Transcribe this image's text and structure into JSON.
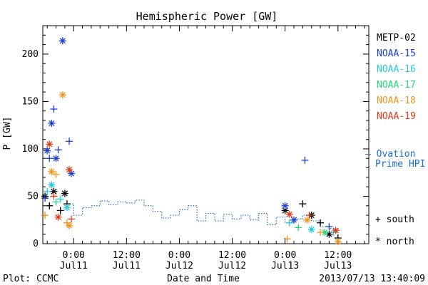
{
  "chart_data": {
    "type": "scatter",
    "title": "Hemispheric Power [GW]",
    "ylabel": "P [GW]",
    "xlabel": "Date and Time",
    "ylim": [
      0,
      230
    ],
    "xlim": [
      "2013-07-10 17:00",
      "2013-07-13 19:00"
    ],
    "yticks": [
      0,
      50,
      100,
      150,
      200
    ],
    "xticks": [
      {
        "time": "2013-07-11 00:00",
        "line1": "0:00",
        "line2": "Jul11"
      },
      {
        "time": "2013-07-11 12:00",
        "line1": "12:00",
        "line2": "Jul11"
      },
      {
        "time": "2013-07-12 00:00",
        "line1": "0:00",
        "line2": "Jul12"
      },
      {
        "time": "2013-07-12 12:00",
        "line1": "12:00",
        "line2": "Jul12"
      },
      {
        "time": "2013-07-13 00:00",
        "line1": "0:00",
        "line2": "Jul13"
      },
      {
        "time": "2013-07-13 12:00",
        "line1": "12:00",
        "line2": "Jul13"
      }
    ],
    "legend": {
      "placement": "right",
      "series": [
        {
          "name": "METP-02",
          "color": "#000000"
        },
        {
          "name": "NOAA-15",
          "color": "#1a3fd6"
        },
        {
          "name": "NOAA-16",
          "color": "#22c8e8"
        },
        {
          "name": "NOAA-17",
          "color": "#22d87a"
        },
        {
          "name": "NOAA-18",
          "color": "#f0941c"
        },
        {
          "name": "NOAA-19",
          "color": "#e03a1a"
        }
      ],
      "ovation_label_1": "— Ovation",
      "ovation_label_2": "Prime HPI",
      "ovation_color": "#1a6fd6",
      "marker_south_label": "+ south",
      "marker_north_label": "* north"
    },
    "series": [
      {
        "name": "METP-02",
        "points": [
          {
            "t": "2013-07-10 17:30",
            "v": 50,
            "m": "*"
          },
          {
            "t": "2013-07-10 18:30",
            "v": 40,
            "m": "+"
          },
          {
            "t": "2013-07-10 19:30",
            "v": 55,
            "m": "*"
          },
          {
            "t": "2013-07-10 21:00",
            "v": 35,
            "m": "+"
          },
          {
            "t": "2013-07-10 22:00",
            "v": 53,
            "m": "*"
          },
          {
            "t": "2013-07-10 22:30",
            "v": 42,
            "m": "+"
          },
          {
            "t": "2013-07-13 00:00",
            "v": 35,
            "m": "*"
          },
          {
            "t": "2013-07-13 04:00",
            "v": 42,
            "m": "+"
          },
          {
            "t": "2013-07-13 06:00",
            "v": 30,
            "m": "*"
          },
          {
            "t": "2013-07-13 08:00",
            "v": 22,
            "m": "+"
          },
          {
            "t": "2013-07-13 10:00",
            "v": 10,
            "m": "*"
          },
          {
            "t": "2013-07-13 12:00",
            "v": 6,
            "m": "+"
          }
        ]
      },
      {
        "name": "NOAA-15",
        "points": [
          {
            "t": "2013-07-10 18:00",
            "v": 98,
            "m": "*"
          },
          {
            "t": "2013-07-10 18:30",
            "v": 90,
            "m": "+"
          },
          {
            "t": "2013-07-10 19:00",
            "v": 127,
            "m": "*"
          },
          {
            "t": "2013-07-10 19:30",
            "v": 142,
            "m": "+"
          },
          {
            "t": "2013-07-10 20:00",
            "v": 90,
            "m": "*"
          },
          {
            "t": "2013-07-10 20:30",
            "v": 99,
            "m": "+"
          },
          {
            "t": "2013-07-10 21:30",
            "v": 214,
            "m": "*"
          },
          {
            "t": "2013-07-10 23:00",
            "v": 108,
            "m": "+"
          },
          {
            "t": "2013-07-10 23:30",
            "v": 74,
            "m": "*"
          },
          {
            "t": "2013-07-10 17:30",
            "v": 48,
            "m": "+"
          },
          {
            "t": "2013-07-13 00:00",
            "v": 40,
            "m": "*"
          },
          {
            "t": "2013-07-13 04:30",
            "v": 88,
            "m": "+"
          },
          {
            "t": "2013-07-13 02:00",
            "v": 25,
            "m": "*"
          },
          {
            "t": "2013-07-13 10:00",
            "v": 18,
            "m": "+"
          }
        ]
      },
      {
        "name": "NOAA-16",
        "points": [
          {
            "t": "2013-07-10 18:00",
            "v": 55,
            "m": "+"
          },
          {
            "t": "2013-07-10 19:00",
            "v": 62,
            "m": "*"
          },
          {
            "t": "2013-07-10 21:00",
            "v": 47,
            "m": "+"
          },
          {
            "t": "2013-07-10 22:30",
            "v": 38,
            "m": "*"
          },
          {
            "t": "2013-07-13 01:00",
            "v": 22,
            "m": "+"
          },
          {
            "t": "2013-07-13 06:00",
            "v": 15,
            "m": "*"
          },
          {
            "t": "2013-07-13 11:00",
            "v": 12,
            "m": "+"
          }
        ]
      },
      {
        "name": "NOAA-17",
        "points": [
          {
            "t": "2013-07-10 20:00",
            "v": 44,
            "m": "+"
          },
          {
            "t": "2013-07-13 03:00",
            "v": 17,
            "m": "+"
          },
          {
            "t": "2013-07-13 09:00",
            "v": 12,
            "m": "*"
          }
        ]
      },
      {
        "name": "NOAA-18",
        "points": [
          {
            "t": "2013-07-10 17:30",
            "v": 30,
            "m": "+"
          },
          {
            "t": "2013-07-10 19:00",
            "v": 76,
            "m": "*"
          },
          {
            "t": "2013-07-10 20:00",
            "v": 73,
            "m": "+"
          },
          {
            "t": "2013-07-10 21:30",
            "v": 157,
            "m": "*"
          },
          {
            "t": "2013-07-10 22:30",
            "v": 22,
            "m": "+"
          },
          {
            "t": "2013-07-10 23:00",
            "v": 19,
            "m": "*"
          },
          {
            "t": "2013-07-13 00:30",
            "v": 5,
            "m": "+"
          },
          {
            "t": "2013-07-13 05:00",
            "v": 25,
            "m": "*"
          },
          {
            "t": "2013-07-13 08:00",
            "v": 12,
            "m": "+"
          },
          {
            "t": "2013-07-13 12:00",
            "v": 2,
            "m": "*"
          }
        ]
      },
      {
        "name": "NOAA-19",
        "points": [
          {
            "t": "2013-07-10 18:30",
            "v": 105,
            "m": "*"
          },
          {
            "t": "2013-07-10 19:30",
            "v": 50,
            "m": "+"
          },
          {
            "t": "2013-07-10 20:30",
            "v": 28,
            "m": "*"
          },
          {
            "t": "2013-07-10 23:00",
            "v": 78,
            "m": "*"
          },
          {
            "t": "2013-07-10 23:30",
            "v": 26,
            "m": "+"
          },
          {
            "t": "2013-07-13 01:00",
            "v": 31,
            "m": "*"
          },
          {
            "t": "2013-07-13 05:30",
            "v": 30,
            "m": "+"
          },
          {
            "t": "2013-07-13 11:30",
            "v": 14,
            "m": "*"
          }
        ]
      }
    ],
    "ovation_prime_hpi": [
      {
        "t": "2013-07-10 22:00",
        "v": 42
      },
      {
        "t": "2013-07-11 00:00",
        "v": 30
      },
      {
        "t": "2013-07-11 02:00",
        "v": 38
      },
      {
        "t": "2013-07-11 04:00",
        "v": 40
      },
      {
        "t": "2013-07-11 06:00",
        "v": 45
      },
      {
        "t": "2013-07-11 08:00",
        "v": 41
      },
      {
        "t": "2013-07-11 10:00",
        "v": 44
      },
      {
        "t": "2013-07-11 12:00",
        "v": 43
      },
      {
        "t": "2013-07-11 14:00",
        "v": 46
      },
      {
        "t": "2013-07-11 16:00",
        "v": 40
      },
      {
        "t": "2013-07-11 18:00",
        "v": 34
      },
      {
        "t": "2013-07-11 20:00",
        "v": 27
      },
      {
        "t": "2013-07-11 22:00",
        "v": 30
      },
      {
        "t": "2013-07-12 00:00",
        "v": 36
      },
      {
        "t": "2013-07-12 02:00",
        "v": 40
      },
      {
        "t": "2013-07-12 04:00",
        "v": 24
      },
      {
        "t": "2013-07-12 06:00",
        "v": 32
      },
      {
        "t": "2013-07-12 08:00",
        "v": 24
      },
      {
        "t": "2013-07-12 10:00",
        "v": 31
      },
      {
        "t": "2013-07-12 12:00",
        "v": 26
      },
      {
        "t": "2013-07-12 14:00",
        "v": 30
      },
      {
        "t": "2013-07-12 16:00",
        "v": 25
      },
      {
        "t": "2013-07-12 18:00",
        "v": 32
      },
      {
        "t": "2013-07-12 20:00",
        "v": 20
      },
      {
        "t": "2013-07-12 22:00",
        "v": 28
      },
      {
        "t": "2013-07-13 00:00",
        "v": 22
      },
      {
        "t": "2013-07-13 02:00",
        "v": 26
      },
      {
        "t": "2013-07-13 04:00",
        "v": 30
      },
      {
        "t": "2013-07-13 06:00",
        "v": 24
      },
      {
        "t": "2013-07-13 08:00",
        "v": 18
      },
      {
        "t": "2013-07-13 10:00",
        "v": 16
      },
      {
        "t": "2013-07-13 12:00",
        "v": 14
      }
    ]
  },
  "footer": {
    "plot_credit": "Plot: CCMC",
    "timestamp": "2013/07/13 13:40:09"
  }
}
